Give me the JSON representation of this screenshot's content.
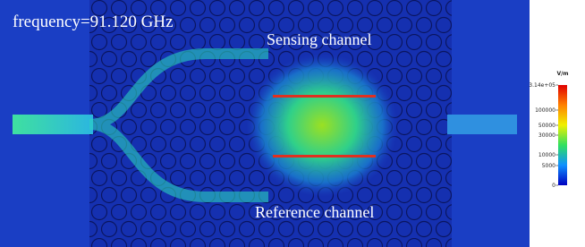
{
  "plot": {
    "title": "frequency=91.120 GHz",
    "labels": [
      "Sensing channel",
      "Reference channel"
    ]
  },
  "colorbar": {
    "unit": "V/m",
    "ticks": [
      "3.14e+05",
      "100000",
      "50000",
      "30000",
      "10000",
      "5000",
      "0"
    ]
  }
}
